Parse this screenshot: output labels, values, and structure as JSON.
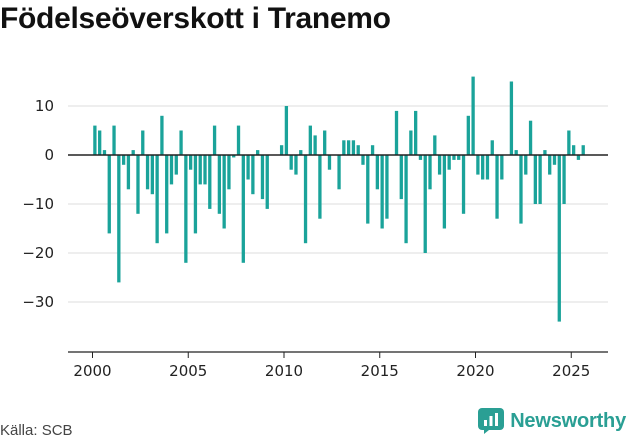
{
  "title": "Födelseöverskott i Tranemo",
  "source": "Källa: SCB",
  "brand": "Newsworthy",
  "colors": {
    "bar": "#1aa39a",
    "zero_line": "#222222",
    "grid": "#dddddd",
    "brand": "#2a9f94"
  },
  "chart_data": {
    "type": "bar",
    "frequency": "quarterly",
    "x_start": "2000-Q1",
    "y_ticks": [
      10,
      0,
      -10,
      -20,
      -30
    ],
    "y_tick_labels": [
      "10",
      "0",
      "−10",
      "−20",
      "−30"
    ],
    "x_ticks": [
      2000,
      2005,
      2010,
      2015,
      2020,
      2025
    ],
    "ylim": [
      -40,
      15
    ],
    "grid": "horizontal",
    "values": [
      6,
      5,
      1,
      -16,
      6,
      -26,
      -2,
      -7,
      1,
      -12,
      5,
      -7,
      -8,
      -18,
      8,
      -16,
      -6,
      -4,
      5,
      -22,
      -3,
      -16,
      -6,
      -6,
      -11,
      6,
      -12,
      -15,
      -7,
      -0.5,
      6,
      -22,
      -5,
      -8,
      1,
      -9,
      -11,
      0,
      0,
      2,
      10,
      -3,
      -4,
      1,
      -18,
      6,
      4,
      -13,
      5,
      -3,
      0,
      -7,
      3,
      3,
      3,
      2,
      -2,
      -14,
      2,
      -7,
      -15,
      -13,
      0,
      9,
      -9,
      -18,
      5,
      9,
      -1,
      -20,
      -7,
      4,
      -4,
      -15,
      -3,
      -1,
      -1,
      -12,
      8,
      16,
      -4,
      -5,
      -5,
      3,
      -13,
      -5,
      0,
      15,
      1,
      -14,
      -4,
      7,
      -10,
      -10,
      1,
      -4,
      -2,
      -34,
      -10,
      5,
      2,
      -1,
      2
    ]
  }
}
